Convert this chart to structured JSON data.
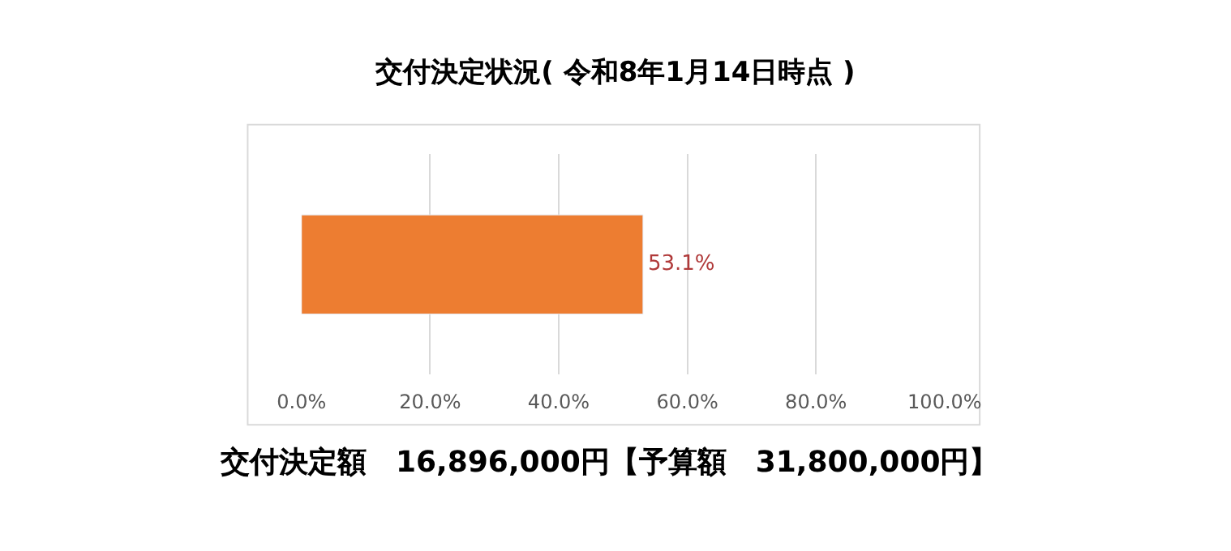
{
  "chart_data": {
    "type": "bar",
    "orientation": "horizontal",
    "title": "交付決定状況( 令和8年1月14日時点 )",
    "categories": [
      null
    ],
    "values": [
      53.1
    ],
    "color": "#ed7d31",
    "value_labels": [
      "53.1%"
    ],
    "xlim": [
      0,
      100
    ],
    "xticks": [
      {
        "value": 0,
        "label": "0.0%"
      },
      {
        "value": 20,
        "label": "20.0%"
      },
      {
        "value": 40,
        "label": "40.0%"
      },
      {
        "value": 60,
        "label": "60.0%"
      },
      {
        "value": 80,
        "label": "80.0%"
      },
      {
        "value": 100,
        "label": "100.0%"
      }
    ],
    "grid": "x",
    "legend": false,
    "annotations": [
      "交付決定額　16,896,000円【予算額　31,800,000円】"
    ]
  }
}
